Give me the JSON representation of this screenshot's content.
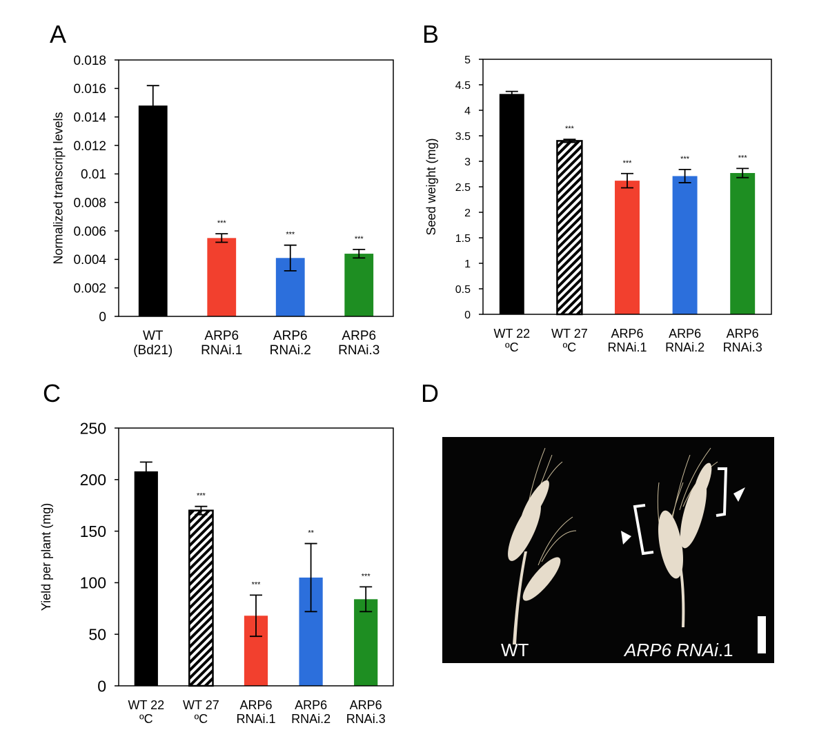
{
  "chart_data": [
    {
      "type": "bar",
      "panel": "A",
      "ylabel": "Normalized transcript levels",
      "categories": [
        "WT (Bd21)",
        "ARP6 RNAi.1",
        "ARP6 RNAi.2",
        "ARP6 RNAi.3"
      ],
      "values": [
        0.0148,
        0.0055,
        0.0041,
        0.0044
      ],
      "errors": [
        0.0014,
        0.0003,
        0.0009,
        0.0003
      ],
      "significance": [
        null,
        "***",
        "***",
        "***"
      ],
      "colors": [
        "#000000",
        "#f2402e",
        "#2c6fdc",
        "#1e8e22"
      ],
      "hatched": [
        false,
        false,
        false,
        false
      ],
      "ylim": [
        0,
        0.018
      ],
      "yticks": [
        0,
        0.002,
        0.004,
        0.006,
        0.008,
        0.01,
        0.012,
        0.014,
        0.016,
        0.018
      ]
    },
    {
      "type": "bar",
      "panel": "B",
      "ylabel": "Seed weight (mg)",
      "categories": [
        "WT 22 ºC",
        "WT 27 ºC",
        "ARP6 RNAi.1",
        "ARP6 RNAi.2",
        "ARP6 RNAi.3"
      ],
      "values": [
        4.32,
        3.4,
        2.62,
        2.71,
        2.77
      ],
      "errors": [
        0.05,
        0.03,
        0.14,
        0.13,
        0.09
      ],
      "significance": [
        null,
        "***",
        "***",
        "***",
        "***"
      ],
      "colors": [
        "#000000",
        "#000000",
        "#f2402e",
        "#2c6fdc",
        "#1e8e22"
      ],
      "hatched": [
        false,
        true,
        false,
        false,
        false
      ],
      "ylim": [
        0,
        5
      ],
      "yticks": [
        0,
        0.5,
        1,
        1.5,
        2,
        2.5,
        3,
        3.5,
        4,
        4.5,
        5
      ]
    },
    {
      "type": "bar",
      "panel": "C",
      "ylabel": "Yield per plant (mg)",
      "categories": [
        "WT 22 ºC",
        "WT 27 ºC",
        "ARP6 RNAi.1",
        "ARP6 RNAi.2",
        "ARP6 RNAi.3"
      ],
      "values": [
        208,
        170,
        68,
        105,
        84
      ],
      "errors": [
        9,
        4,
        20,
        33,
        12
      ],
      "significance": [
        null,
        "***",
        "***",
        "**",
        "***"
      ],
      "colors": [
        "#000000",
        "#000000",
        "#f2402e",
        "#2c6fdc",
        "#1e8e22"
      ],
      "hatched": [
        false,
        true,
        false,
        false,
        false
      ],
      "ylim": [
        0,
        250
      ],
      "yticks": [
        0,
        50,
        100,
        150,
        200,
        250
      ]
    }
  ],
  "panel_d": {
    "panel": "D",
    "labels": [
      "WT",
      "ARP6 RNAi",
      ".1"
    ]
  }
}
